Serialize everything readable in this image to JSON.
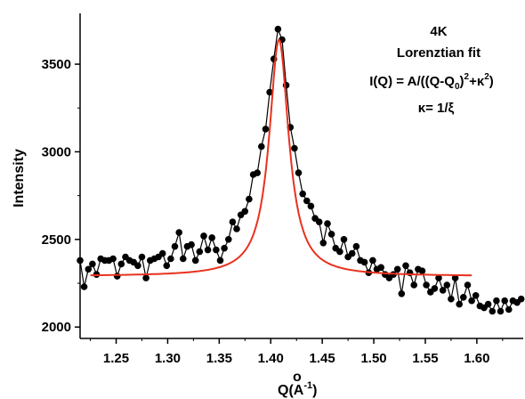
{
  "chart_data": {
    "type": "scatter",
    "xlabel_main": "Q(",
    "xlabel_unit": "A",
    "xlabel_ring": "o",
    "xlabel_exp": "-1",
    "xlabel_close": ")",
    "ylabel": "Intensity",
    "xlim": [
      1.215,
      1.645
    ],
    "ylim": [
      1935,
      3790
    ],
    "x_ticks": [
      1.25,
      1.3,
      1.35,
      1.4,
      1.45,
      1.5,
      1.55,
      1.6
    ],
    "x_tick_labels": [
      "1.25",
      "1.30",
      "1.35",
      "1.40",
      "1.45",
      "1.50",
      "1.55",
      "1.60"
    ],
    "y_ticks": [
      2000,
      2500,
      3000,
      3500
    ],
    "y_tick_labels": [
      "2000",
      "2500",
      "3000",
      "3500"
    ],
    "annotations": {
      "temp": "4K",
      "fit_name": "Lorenztian fit",
      "eq_part1": "I(Q) = A/((Q-Q",
      "eq_sub0": "0",
      "eq_part2": ")",
      "eq_sup2a": "2",
      "eq_part3": "+κ",
      "eq_sup2b": "2",
      "eq_part4": ")",
      "kappa": "κ= 1/ξ"
    },
    "series": [
      {
        "kind": "data",
        "color": "#000000",
        "x": [
          1.215,
          1.219,
          1.223,
          1.227,
          1.231,
          1.235,
          1.239,
          1.243,
          1.247,
          1.251,
          1.255,
          1.259,
          1.263,
          1.267,
          1.271,
          1.275,
          1.279,
          1.283,
          1.287,
          1.291,
          1.295,
          1.299,
          1.303,
          1.307,
          1.311,
          1.315,
          1.319,
          1.323,
          1.327,
          1.331,
          1.335,
          1.339,
          1.343,
          1.347,
          1.351,
          1.355,
          1.359,
          1.363,
          1.367,
          1.371,
          1.375,
          1.379,
          1.383,
          1.387,
          1.391,
          1.395,
          1.399,
          1.403,
          1.407,
          1.411,
          1.415,
          1.419,
          1.423,
          1.427,
          1.431,
          1.435,
          1.439,
          1.443,
          1.447,
          1.451,
          1.455,
          1.459,
          1.463,
          1.467,
          1.471,
          1.475,
          1.479,
          1.483,
          1.487,
          1.491,
          1.495,
          1.499,
          1.503,
          1.507,
          1.511,
          1.515,
          1.519,
          1.523,
          1.527,
          1.531,
          1.535,
          1.539,
          1.543,
          1.547,
          1.551,
          1.555,
          1.559,
          1.563,
          1.567,
          1.571,
          1.575,
          1.579,
          1.583,
          1.587,
          1.591,
          1.595,
          1.599,
          1.603,
          1.607,
          1.611,
          1.615,
          1.619,
          1.623,
          1.627,
          1.631,
          1.635,
          1.639,
          1.643
        ],
        "y": [
          2380,
          2230,
          2330,
          2360,
          2300,
          2390,
          2380,
          2380,
          2390,
          2290,
          2360,
          2400,
          2380,
          2370,
          2350,
          2400,
          2280,
          2380,
          2390,
          2400,
          2420,
          2350,
          2390,
          2460,
          2540,
          2390,
          2460,
          2470,
          2380,
          2430,
          2520,
          2440,
          2510,
          2440,
          2380,
          2450,
          2500,
          2600,
          2560,
          2640,
          2660,
          2730,
          2870,
          2880,
          3030,
          3130,
          3340,
          3530,
          3700,
          3640,
          3380,
          3140,
          3020,
          2880,
          2760,
          2720,
          2690,
          2620,
          2600,
          2480,
          2590,
          2530,
          2450,
          2430,
          2500,
          2400,
          2420,
          2460,
          2380,
          2370,
          2310,
          2380,
          2330,
          2340,
          2300,
          2280,
          2300,
          2330,
          2190,
          2350,
          2310,
          2240,
          2330,
          2320,
          2240,
          2200,
          2220,
          2280,
          2210,
          2240,
          2160,
          2280,
          2130,
          2170,
          2240,
          2150,
          2180,
          2120,
          2110,
          2130,
          2090,
          2150,
          2090,
          2150,
          2100,
          2150,
          2140,
          2160
        ]
      },
      {
        "kind": "fit",
        "color": "#e8321e",
        "model": "lorentzian",
        "background": 2290,
        "slope": 0,
        "amplitude": 1350,
        "center": 1.408,
        "kappa": 0.0115,
        "x_range": [
          1.225,
          1.595
        ]
      }
    ]
  }
}
